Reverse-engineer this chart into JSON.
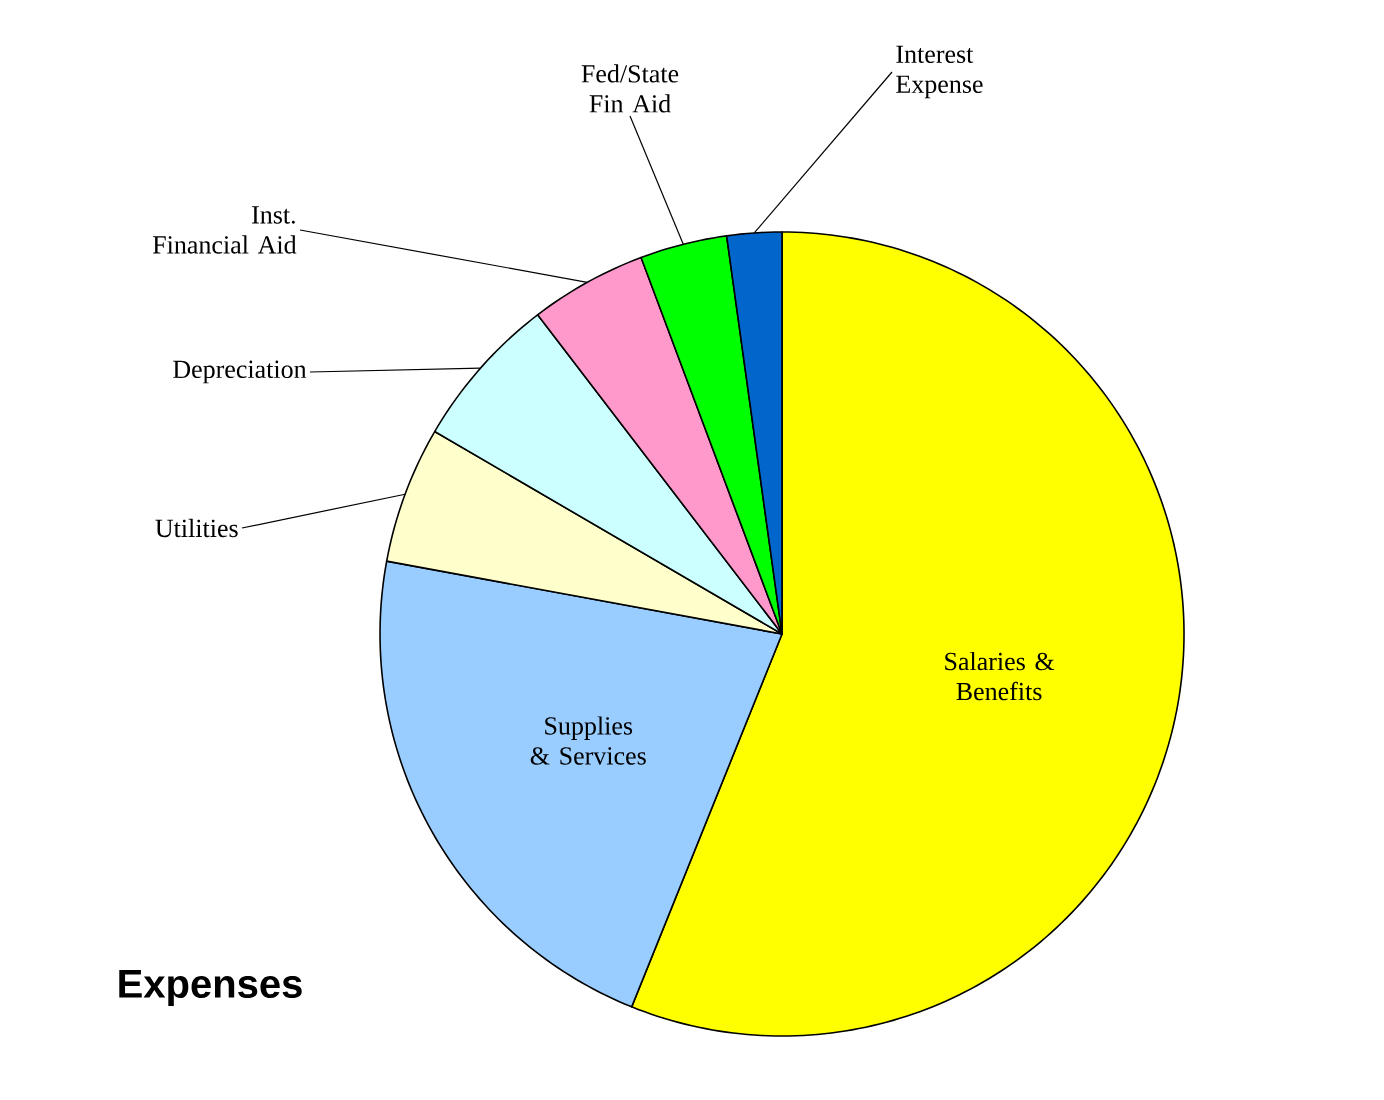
{
  "chart_data": {
    "type": "pie",
    "title": "Expenses",
    "categories": [
      "Salaries & Benefits",
      "Supplies & Services",
      "Utilities",
      "Depreciation",
      "Inst. Financial Aid",
      "Fed/State Fin Aid",
      "Interest Expense"
    ],
    "values": [
      56.1,
      21.8,
      5.5,
      6.2,
      4.7,
      3.5,
      2.2
    ],
    "colors": [
      "#ffff00",
      "#99ccff",
      "#ffffcc",
      "#ccffff",
      "#ff99cc",
      "#00ff00",
      "#0066cc"
    ]
  }
}
